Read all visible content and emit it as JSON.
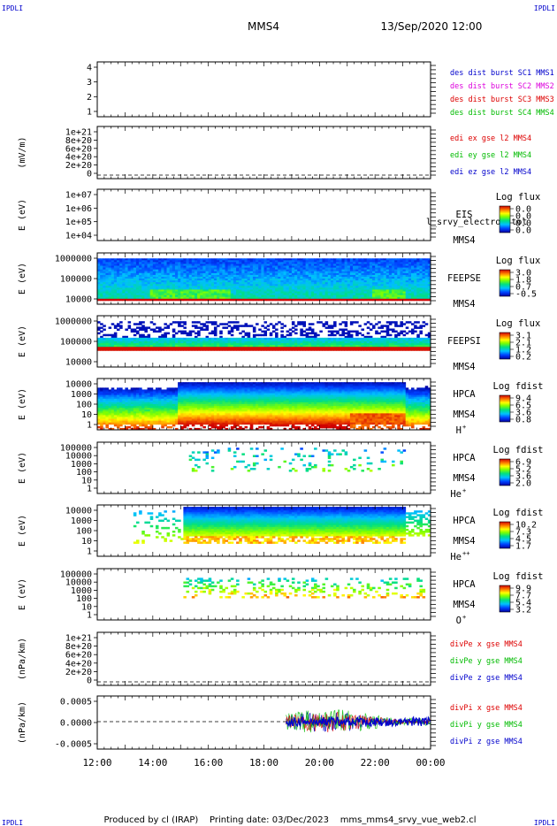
{
  "header": {
    "corner_left": "IPDLI",
    "corner_right": "IPDLI",
    "spacecraft": "MMS4",
    "datetime": "13/Sep/2020 12:00",
    "footer_left": "IPDLI",
    "footer_right": "IPDLI",
    "footer": "Produced by cl (IRAP)    Printing date: 03/Dec/2023    mms_mms4_srvy_vue_web2.cl"
  },
  "colors": {
    "blue": "#0000cc",
    "magenta": "#dd00dd",
    "red": "#dd0000",
    "green": "#00bb00",
    "dark": "#000000"
  },
  "chart_data": {
    "type": "multi-panel timeseries / spectrogram",
    "time_axis": {
      "labels": [
        "12:00",
        "14:00",
        "16:00",
        "18:00",
        "20:00",
        "22:00",
        "00:00"
      ],
      "range_hours": [
        12,
        24
      ]
    },
    "panels": [
      {
        "id": "dist",
        "kind": "line",
        "ylabel": "",
        "yticks": [
          "4",
          "3",
          "2",
          "1"
        ],
        "legend": [
          {
            "text": "des dist burst SC1 MMS1",
            "color": "blue"
          },
          {
            "text": "des dist burst SC2 MMS2",
            "color": "magenta"
          },
          {
            "text": "des dist burst SC3 MMS3",
            "color": "red"
          },
          {
            "text": "des dist burst SC4 MMS4",
            "color": "green"
          }
        ]
      },
      {
        "id": "edi",
        "kind": "line",
        "ylabel": "(mV/m)",
        "yticks": [
          "1e+21",
          "8e+20",
          "6e+20",
          "4e+20",
          "2e+20",
          "0"
        ],
        "dashed_zero": true,
        "legend": [
          {
            "text": "edi ex gse l2 MMS4",
            "color": "red"
          },
          {
            "text": "edi ey gse l2 MMS4",
            "color": "green"
          },
          {
            "text": "edi ez gse l2 MMS4",
            "color": "blue"
          }
        ]
      },
      {
        "id": "eis",
        "kind": "spectrogram",
        "ylabel": "E (eV)",
        "yticks": [
          "1e+07",
          "1e+06",
          "1e+05",
          "1e+04"
        ],
        "labels": [
          "EIS",
          "MMS4"
        ],
        "overlay_text": "l_srvy_electron tot",
        "cbar_title": "Log flux",
        "cbar_values": [
          "0.0",
          "0.0",
          "0.0",
          "0.0"
        ],
        "profile": "empty"
      },
      {
        "id": "feepse",
        "kind": "spectrogram",
        "ylabel": "E (eV)",
        "yticks": [
          "1000000",
          "100000",
          "10000"
        ],
        "labels": [
          "FEEPSE",
          "MMS4"
        ],
        "cbar_title": "Log flux",
        "cbar_values": [
          "3.0",
          "1.8",
          "0.7",
          "-0.5"
        ],
        "profile": "feeps_e"
      },
      {
        "id": "feepsi",
        "kind": "spectrogram",
        "ylabel": "E (eV)",
        "yticks": [
          "1000000",
          "100000",
          "10000"
        ],
        "labels": [
          "FEEPSI",
          "MMS4"
        ],
        "cbar_title": "Log flux",
        "cbar_values": [
          "3.1",
          "2.1",
          "1.2",
          "0.2"
        ],
        "profile": "feeps_i"
      },
      {
        "id": "hpca_h",
        "kind": "spectrogram",
        "ylabel": "E (eV)",
        "yticks": [
          "10000",
          "1000",
          "100",
          "10",
          "1"
        ],
        "labels": [
          "HPCA",
          "MMS4",
          "H",
          "+"
        ],
        "cbar_title": "Log fdist",
        "cbar_values": [
          "9.4",
          "6.5",
          "3.6",
          "0.8"
        ],
        "profile": "hplus"
      },
      {
        "id": "hpca_he",
        "kind": "spectrogram",
        "ylabel": "E (eV)",
        "yticks": [
          "100000",
          "10000",
          "1000",
          "100",
          "10",
          "1"
        ],
        "labels": [
          "HPCA",
          "MMS4",
          "He",
          "+"
        ],
        "cbar_title": "Log fdist",
        "cbar_values": [
          "6.9",
          "5.2",
          "3.6",
          "2.0"
        ],
        "profile": "heplus"
      },
      {
        "id": "hpca_he2",
        "kind": "spectrogram",
        "ylabel": "E (eV)",
        "yticks": [
          "10000",
          "1000",
          "100",
          "10",
          "1"
        ],
        "labels": [
          "HPCA",
          "MMS4",
          "He",
          "++"
        ],
        "cbar_title": "Log fdist",
        "cbar_values": [
          "10.2",
          "7.3",
          "4.5",
          "1.7"
        ],
        "profile": "heplusplus"
      },
      {
        "id": "hpca_o",
        "kind": "spectrogram",
        "ylabel": "E (eV)",
        "yticks": [
          "100000",
          "10000",
          "1000",
          "100",
          "10",
          "1"
        ],
        "labels": [
          "HPCA",
          "MMS4",
          "O",
          "+"
        ],
        "cbar_title": "Log fdist",
        "cbar_values": [
          "9.9",
          "7.7",
          "5.4",
          "3.2"
        ],
        "profile": "oplus"
      },
      {
        "id": "divpe",
        "kind": "line",
        "ylabel": "(nPa/km)",
        "yticks": [
          "1e+21",
          "8e+20",
          "6e+20",
          "4e+20",
          "2e+20",
          "0"
        ],
        "dashed_zero": true,
        "legend": [
          {
            "text": "divPe x gse MMS4",
            "color": "red"
          },
          {
            "text": "divPe y gse MMS4",
            "color": "green"
          },
          {
            "text": "divPe z gse MMS4",
            "color": "blue"
          }
        ]
      },
      {
        "id": "divpi",
        "kind": "line",
        "ylabel": "(nPa/km)",
        "yticks": [
          "0.0005",
          "0.0000",
          "-0.0005"
        ],
        "yrange": [
          -0.0008,
          0.0008
        ],
        "dashed_zero": true,
        "data_start_hour": 18.8,
        "legend": [
          {
            "text": "divPi x gse MMS4",
            "color": "red"
          },
          {
            "text": "divPi y gse MMS4",
            "color": "green"
          },
          {
            "text": "divPi z gse MMS4",
            "color": "blue"
          }
        ]
      }
    ]
  }
}
